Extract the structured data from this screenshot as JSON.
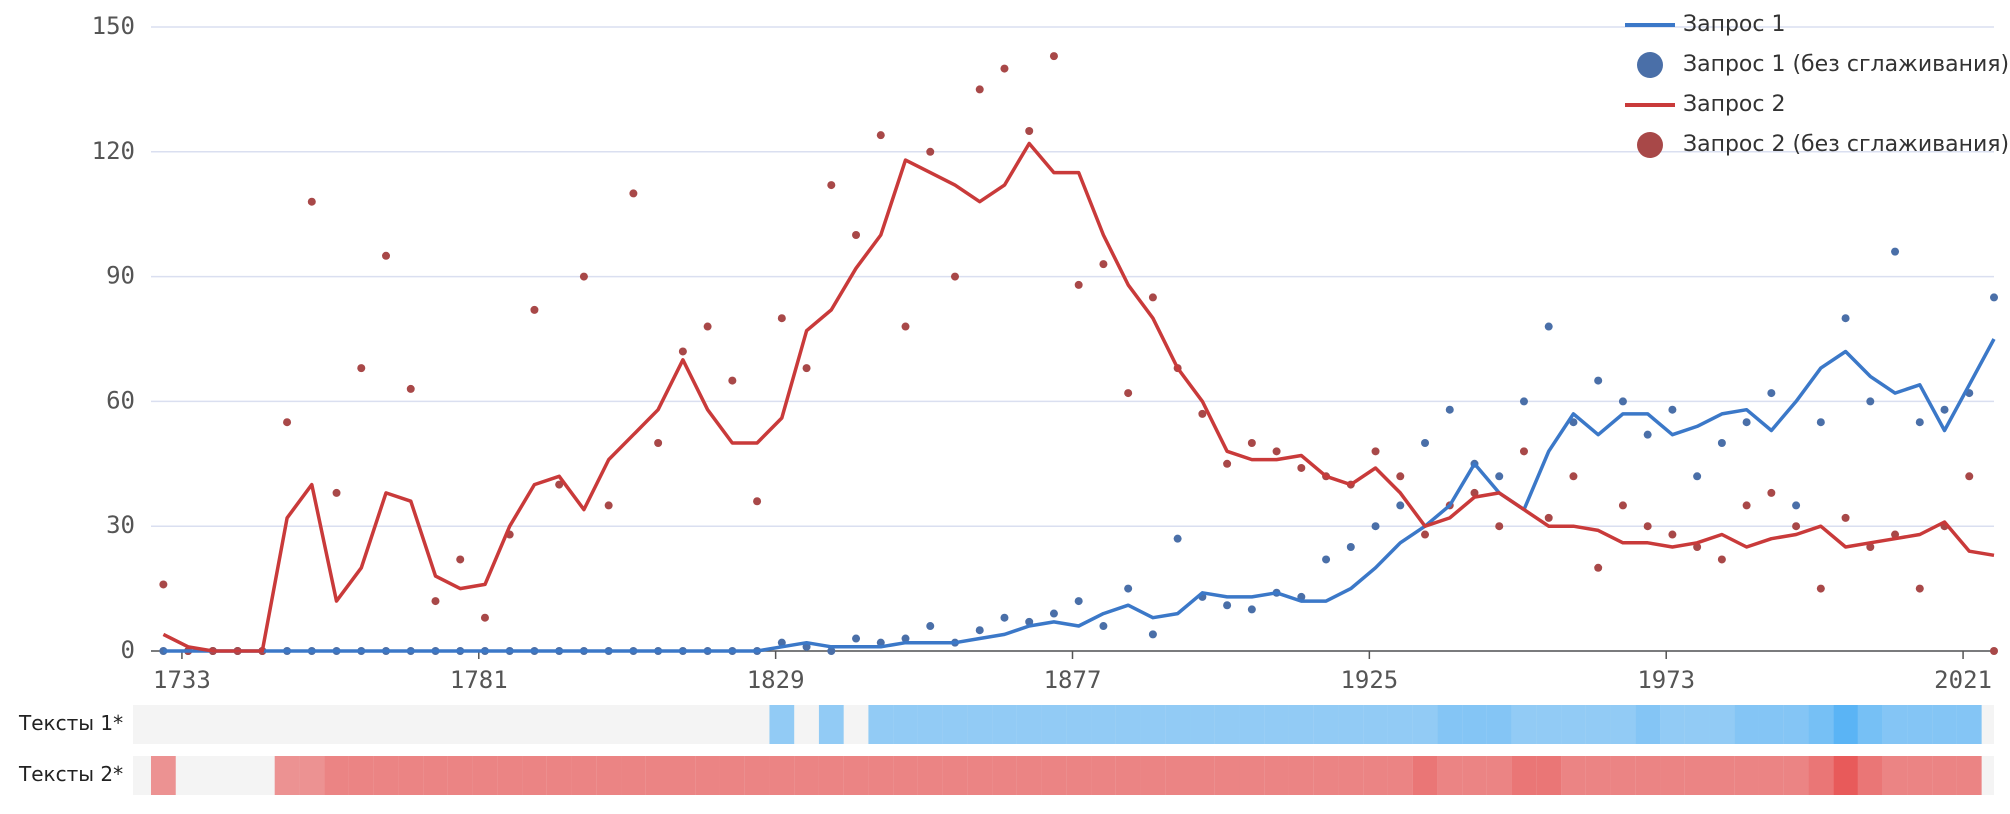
{
  "chart_data": {
    "type": "line",
    "x": [
      1730,
      1734,
      1738,
      1742,
      1746,
      1750,
      1754,
      1758,
      1762,
      1766,
      1770,
      1774,
      1778,
      1782,
      1786,
      1790,
      1794,
      1798,
      1802,
      1806,
      1810,
      1814,
      1818,
      1822,
      1826,
      1830,
      1834,
      1838,
      1842,
      1846,
      1850,
      1854,
      1858,
      1862,
      1866,
      1870,
      1874,
      1878,
      1882,
      1886,
      1890,
      1894,
      1898,
      1902,
      1906,
      1910,
      1914,
      1918,
      1922,
      1926,
      1930,
      1934,
      1938,
      1942,
      1946,
      1950,
      1954,
      1958,
      1962,
      1966,
      1970,
      1974,
      1978,
      1982,
      1986,
      1990,
      1994,
      1998,
      2002,
      2006,
      2010,
      2014,
      2018,
      2022,
      2026
    ],
    "series": [
      {
        "name": "Запрос 1",
        "type": "line",
        "color": "#3b78c8",
        "values": [
          0,
          0,
          0,
          0,
          0,
          0,
          0,
          0,
          0,
          0,
          0,
          0,
          0,
          0,
          0,
          0,
          0,
          0,
          0,
          0,
          0,
          0,
          0,
          0,
          0,
          1,
          2,
          1,
          1,
          1,
          2,
          2,
          2,
          3,
          4,
          6,
          7,
          6,
          9,
          11,
          8,
          9,
          14,
          13,
          13,
          14,
          12,
          12,
          15,
          20,
          26,
          30,
          35,
          45,
          38,
          34,
          48,
          57,
          52,
          57,
          57,
          52,
          54,
          57,
          58,
          53,
          60,
          68,
          72,
          66,
          62,
          64,
          53,
          64,
          75
        ]
      },
      {
        "name": "Запрос 1 (без сглаживания)",
        "type": "scatter",
        "color": "#4a6fa8",
        "values": [
          0,
          0,
          0,
          0,
          0,
          0,
          0,
          0,
          0,
          0,
          0,
          0,
          0,
          0,
          0,
          0,
          0,
          0,
          0,
          0,
          0,
          0,
          0,
          0,
          0,
          2,
          1,
          0,
          3,
          2,
          3,
          6,
          2,
          5,
          8,
          7,
          9,
          12,
          6,
          15,
          4,
          27,
          13,
          11,
          10,
          14,
          13,
          22,
          25,
          30,
          35,
          50,
          58,
          45,
          42,
          60,
          78,
          55,
          65,
          60,
          52,
          58,
          42,
          50,
          55,
          62,
          35,
          55,
          80,
          60,
          96,
          55,
          58,
          62,
          85
        ]
      },
      {
        "name": "Запрос 2",
        "type": "line",
        "color": "#c93a3a",
        "values": [
          4,
          1,
          0,
          0,
          0,
          32,
          40,
          12,
          20,
          38,
          36,
          18,
          15,
          16,
          30,
          40,
          42,
          34,
          46,
          52,
          58,
          70,
          58,
          50,
          50,
          56,
          77,
          82,
          92,
          100,
          118,
          115,
          112,
          108,
          112,
          122,
          115,
          115,
          100,
          88,
          80,
          68,
          60,
          48,
          46,
          46,
          47,
          42,
          40,
          44,
          38,
          30,
          32,
          37,
          38,
          34,
          30,
          30,
          29,
          26,
          26,
          25,
          26,
          28,
          25,
          27,
          28,
          30,
          25,
          26,
          27,
          28,
          31,
          24,
          23
        ]
      },
      {
        "name": "Запрос 2 (без сглаживания)",
        "type": "scatter",
        "color": "#a84848",
        "values": [
          16,
          0,
          0,
          0,
          0,
          55,
          108,
          38,
          68,
          95,
          63,
          12,
          22,
          8,
          28,
          82,
          40,
          90,
          35,
          110,
          50,
          72,
          78,
          65,
          36,
          80,
          68,
          112,
          100,
          124,
          78,
          120,
          90,
          135,
          140,
          125,
          143,
          88,
          93,
          62,
          85,
          68,
          57,
          45,
          50,
          48,
          44,
          42,
          40,
          48,
          42,
          28,
          35,
          38,
          30,
          48,
          32,
          42,
          20,
          35,
          30,
          28,
          25,
          22,
          35,
          38,
          30,
          15,
          32,
          25,
          28,
          15,
          30,
          42,
          0
        ]
      }
    ],
    "strips": [
      {
        "name": "Тексты 1*",
        "color": "#5ab4f5",
        "values": [
          0,
          0,
          0,
          0,
          0,
          0,
          0,
          0,
          0,
          0,
          0,
          0,
          0,
          0,
          0,
          0,
          0,
          0,
          0,
          0,
          0,
          0,
          0,
          0,
          0,
          1,
          0,
          1,
          0,
          1,
          1,
          1,
          1,
          1,
          1,
          1,
          1,
          1,
          1,
          1,
          1,
          1,
          1,
          1,
          1,
          1,
          1,
          1,
          1,
          1,
          1,
          1,
          2,
          2,
          2,
          1,
          1,
          1,
          1,
          1,
          2,
          1,
          1,
          1,
          2,
          2,
          2,
          3,
          5,
          3,
          2,
          2,
          2,
          2,
          0
        ]
      },
      {
        "name": "Тексты 2*",
        "color": "#e85a5a",
        "values": [
          1,
          0,
          0,
          0,
          0,
          1,
          1,
          2,
          2,
          2,
          2,
          2,
          2,
          2,
          2,
          2,
          2,
          2,
          2,
          2,
          2,
          2,
          2,
          2,
          2,
          2,
          2,
          2,
          2,
          2,
          2,
          2,
          2,
          2,
          2,
          2,
          2,
          2,
          2,
          2,
          2,
          2,
          2,
          2,
          2,
          2,
          2,
          2,
          2,
          2,
          2,
          3,
          2,
          2,
          2,
          3,
          3,
          2,
          2,
          2,
          2,
          2,
          2,
          2,
          2,
          2,
          2,
          3,
          5,
          3,
          2,
          2,
          2,
          2,
          0
        ]
      }
    ],
    "xlim": [
      1728,
      2026
    ],
    "xticks": [
      1733,
      1781,
      1829,
      1877,
      1925,
      1973,
      2021
    ],
    "ylim": [
      0,
      150
    ],
    "yticks": [
      0,
      30,
      60,
      90,
      120,
      150
    ],
    "grid": true,
    "legend": "top-right"
  }
}
